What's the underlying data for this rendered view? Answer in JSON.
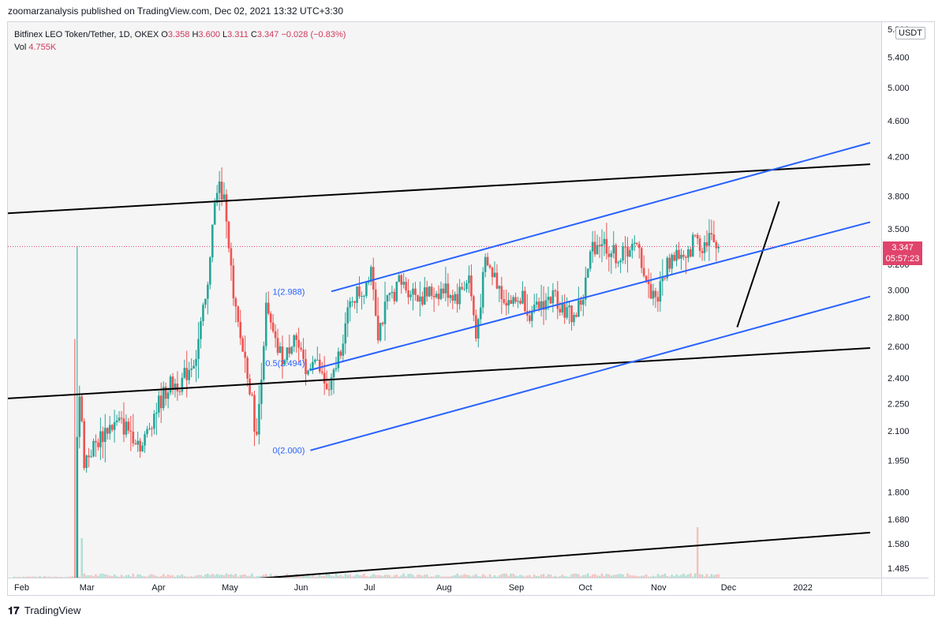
{
  "publisher": "zoomarzanalysis published on TradingView.com, Dec 02, 2021 13:32 UTC+3:30",
  "legend": {
    "symbol": "Bitfinex LEO Token/Tether, 1D, OKEX",
    "open_label": "O",
    "open": "3.358",
    "high_label": "H",
    "high": "3.600",
    "low_label": "L",
    "low": "3.311",
    "close_label": "C",
    "close": "3.347",
    "change": "−0.028 (−0.83%)",
    "vol_label": "Vol",
    "vol": "4.755K"
  },
  "currency": "USDT",
  "price_tag": {
    "price": "3.347",
    "countdown": "05:57:23"
  },
  "footer": {
    "brand": "TradingView"
  },
  "colors": {
    "up": "#26a69a",
    "down": "#ef5350",
    "blue_line": "#2962ff",
    "black_line": "#000000",
    "price_tag": "#e0436b"
  },
  "chart_data": {
    "type": "candlestick",
    "title": "Bitfinex LEO Token/Tether, 1D, OKEX",
    "scale": "log",
    "ylim": [
      1.45,
      5.9
    ],
    "y_ticks": [
      "5.400",
      "5.000",
      "4.600",
      "4.200",
      "3.800",
      "3.500",
      "3.200",
      "3.000",
      "2.800",
      "2.600",
      "2.400",
      "2.250",
      "2.100",
      "1.950",
      "1.800",
      "1.680",
      "1.580",
      "1.485"
    ],
    "x_ticks": [
      "Feb",
      "Mar",
      "Apr",
      "May",
      "Jun",
      "Jul",
      "Aug",
      "Sep",
      "Oct",
      "Nov",
      "Dec",
      "2022"
    ],
    "x_range_days": [
      0,
      365
    ],
    "x_tick_days": [
      0,
      28,
      59,
      89,
      120,
      150,
      181,
      212,
      242,
      273,
      303,
      334
    ],
    "last_price": 3.347,
    "price_anchors": [
      [
        26,
        1.44
      ],
      [
        27,
        2.1
      ],
      [
        28,
        2.3
      ],
      [
        30,
        1.95
      ],
      [
        32,
        1.98
      ],
      [
        36,
        2.05
      ],
      [
        40,
        2.12
      ],
      [
        45,
        2.14
      ],
      [
        50,
        2.1
      ],
      [
        55,
        2.02
      ],
      [
        60,
        2.2
      ],
      [
        66,
        2.35
      ],
      [
        72,
        2.38
      ],
      [
        78,
        2.55
      ],
      [
        83,
        3.0
      ],
      [
        85,
        3.6
      ],
      [
        88,
        3.9
      ],
      [
        91,
        3.65
      ],
      [
        94,
        2.9
      ],
      [
        97,
        2.65
      ],
      [
        100,
        2.45
      ],
      [
        104,
        2.05
      ],
      [
        108,
        2.85
      ],
      [
        112,
        2.6
      ],
      [
        116,
        2.5
      ],
      [
        120,
        2.7
      ],
      [
        125,
        2.4
      ],
      [
        128,
        2.55
      ],
      [
        135,
        2.3
      ],
      [
        140,
        2.6
      ],
      [
        145,
        2.95
      ],
      [
        150,
        3.0
      ],
      [
        153,
        3.2
      ],
      [
        156,
        2.7
      ],
      [
        160,
        2.9
      ],
      [
        165,
        3.05
      ],
      [
        170,
        3.0
      ],
      [
        175,
        2.95
      ],
      [
        180,
        2.98
      ],
      [
        185,
        3.0
      ],
      [
        190,
        2.95
      ],
      [
        195,
        3.1
      ],
      [
        198,
        2.65
      ],
      [
        202,
        3.2
      ],
      [
        206,
        3.1
      ],
      [
        210,
        2.95
      ],
      [
        214,
        2.9
      ],
      [
        218,
        2.95
      ],
      [
        222,
        2.8
      ],
      [
        226,
        2.9
      ],
      [
        232,
        2.95
      ],
      [
        236,
        2.85
      ],
      [
        240,
        2.8
      ],
      [
        244,
        2.95
      ],
      [
        248,
        3.35
      ],
      [
        252,
        3.4
      ],
      [
        256,
        3.3
      ],
      [
        260,
        3.25
      ],
      [
        264,
        3.35
      ],
      [
        268,
        3.3
      ],
      [
        272,
        3.0
      ],
      [
        276,
        2.95
      ],
      [
        280,
        3.2
      ],
      [
        284,
        3.3
      ],
      [
        288,
        3.2
      ],
      [
        292,
        3.45
      ],
      [
        295,
        3.35
      ],
      [
        298,
        3.45
      ],
      [
        300,
        3.35
      ],
      [
        302,
        3.347
      ]
    ],
    "volume_spikes": [
      [
        27,
        900
      ],
      [
        29,
        500
      ],
      [
        293,
        640
      ]
    ],
    "drawings": [
      {
        "kind": "trendline",
        "color": "black",
        "points": [
          [
            -3,
            3.64
          ],
          [
            367,
            4.12
          ]
        ]
      },
      {
        "kind": "trendline",
        "color": "black",
        "points": [
          [
            -3,
            2.28
          ],
          [
            367,
            2.59
          ]
        ]
      },
      {
        "kind": "trendline",
        "color": "black",
        "points": [
          [
            70,
            1.425
          ],
          [
            367,
            1.625
          ]
        ]
      },
      {
        "kind": "trendline",
        "color": "black",
        "points": [
          [
            310,
            2.73
          ],
          [
            328,
            3.75
          ]
        ]
      },
      {
        "kind": "channel",
        "color": "blue",
        "points": [
          [
            136,
            2.988
          ],
          [
            367,
            4.35
          ]
        ]
      },
      {
        "kind": "channel",
        "color": "blue",
        "points": [
          [
            127,
            2.45
          ],
          [
            367,
            3.56
          ]
        ]
      },
      {
        "kind": "channel",
        "color": "blue",
        "points": [
          [
            127,
            2.0
          ],
          [
            367,
            2.95
          ]
        ]
      }
    ],
    "fib_levels": [
      {
        "label": "1(2.988)",
        "value": 2.988
      },
      {
        "label": "0.5(2.494)",
        "value": 2.494
      },
      {
        "label": "0(2.000)",
        "value": 2.0
      }
    ]
  }
}
